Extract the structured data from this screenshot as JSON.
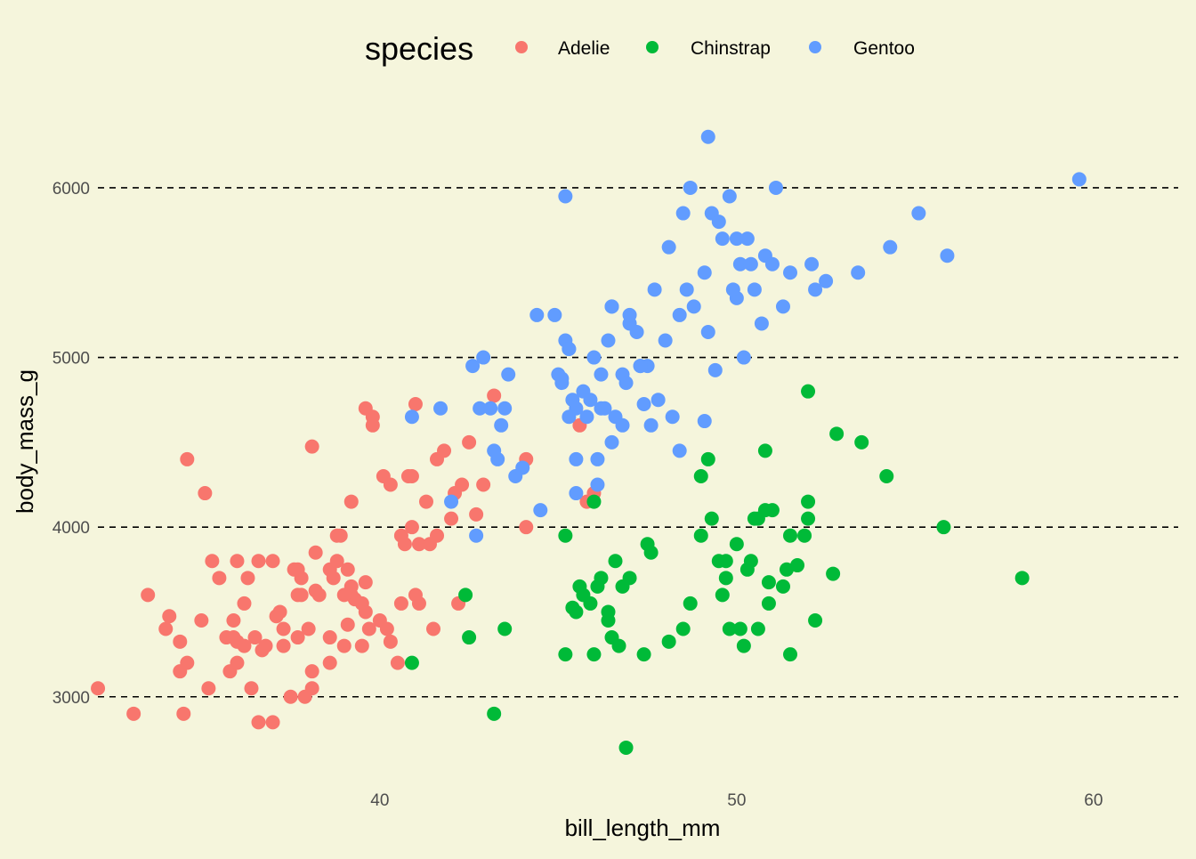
{
  "chart_data": {
    "type": "scatter",
    "xlabel": "bill_length_mm",
    "ylabel": "body_mass_g",
    "xlim": [
      31.5,
      60.5
    ],
    "ylim": [
      2600,
      6400
    ],
    "xticks": [
      40,
      50,
      60
    ],
    "yticks": [
      3000,
      4000,
      5000,
      6000
    ],
    "grid": "horizontal dashed lines at y ticks",
    "legend": {
      "title": "species",
      "position": "top",
      "entries": [
        "Adelie",
        "Chinstrap",
        "Gentoo"
      ]
    },
    "series": [
      {
        "name": "Adelie",
        "color": "#F8766D",
        "points": [
          [
            32.1,
            3050
          ],
          [
            33.1,
            2900
          ],
          [
            33.5,
            3600
          ],
          [
            34.0,
            3400
          ],
          [
            34.1,
            3475
          ],
          [
            34.4,
            3325
          ],
          [
            34.5,
            2900
          ],
          [
            34.6,
            4400
          ],
          [
            34.6,
            3200
          ],
          [
            35.0,
            3450
          ],
          [
            35.1,
            4200
          ],
          [
            35.2,
            3050
          ],
          [
            35.3,
            3800
          ],
          [
            35.5,
            3700
          ],
          [
            35.7,
            3350
          ],
          [
            35.8,
            3150
          ],
          [
            35.9,
            3450
          ],
          [
            36.0,
            3800
          ],
          [
            36.0,
            3200
          ],
          [
            36.0,
            3325
          ],
          [
            36.2,
            3550
          ],
          [
            36.3,
            3700
          ],
          [
            36.4,
            3050
          ],
          [
            36.5,
            3350
          ],
          [
            36.6,
            3800
          ],
          [
            36.7,
            3275
          ],
          [
            36.8,
            3300
          ],
          [
            37.0,
            2850
          ],
          [
            37.0,
            3800
          ],
          [
            37.1,
            3475
          ],
          [
            37.2,
            3500
          ],
          [
            37.3,
            3400
          ],
          [
            37.3,
            3300
          ],
          [
            37.5,
            3000
          ],
          [
            37.6,
            3750
          ],
          [
            37.7,
            3600
          ],
          [
            37.7,
            3350
          ],
          [
            37.8,
            3700
          ],
          [
            37.9,
            3000
          ],
          [
            38.1,
            4475
          ],
          [
            38.1,
            3150
          ],
          [
            38.2,
            3850
          ],
          [
            38.2,
            3625
          ],
          [
            38.3,
            3600
          ],
          [
            38.6,
            3750
          ],
          [
            38.6,
            3350
          ],
          [
            38.6,
            3200
          ],
          [
            38.7,
            3700
          ],
          [
            38.8,
            3800
          ],
          [
            38.8,
            3950
          ],
          [
            38.9,
            3950
          ],
          [
            39.0,
            3300
          ],
          [
            39.1,
            3750
          ],
          [
            39.1,
            3425
          ],
          [
            39.2,
            3650
          ],
          [
            39.2,
            3600
          ],
          [
            39.3,
            3575
          ],
          [
            39.5,
            3550
          ],
          [
            39.5,
            3300
          ],
          [
            39.6,
            3500
          ],
          [
            39.6,
            3675
          ],
          [
            39.7,
            3400
          ],
          [
            39.8,
            4650
          ],
          [
            40.0,
            3450
          ],
          [
            40.1,
            4300
          ],
          [
            40.2,
            3400
          ],
          [
            40.3,
            3325
          ],
          [
            40.5,
            3200
          ],
          [
            40.6,
            3550
          ],
          [
            40.6,
            3950
          ],
          [
            40.7,
            3900
          ],
          [
            40.8,
            4300
          ],
          [
            40.9,
            4000
          ],
          [
            41.0,
            3600
          ],
          [
            41.1,
            3900
          ],
          [
            41.1,
            3550
          ],
          [
            41.3,
            4150
          ],
          [
            41.4,
            3900
          ],
          [
            41.5,
            3400
          ],
          [
            41.6,
            3950
          ],
          [
            41.8,
            4450
          ],
          [
            42.0,
            4050
          ],
          [
            42.1,
            4200
          ],
          [
            42.2,
            3550
          ],
          [
            42.3,
            4250
          ],
          [
            42.5,
            4500
          ],
          [
            42.7,
            4075
          ],
          [
            42.9,
            4250
          ],
          [
            43.2,
            4775
          ],
          [
            44.1,
            4000
          ],
          [
            44.1,
            4400
          ],
          [
            45.6,
            4600
          ],
          [
            45.8,
            4150
          ],
          [
            46.0,
            4200
          ],
          [
            38.1,
            3050
          ],
          [
            36.6,
            2850
          ],
          [
            34.4,
            3150
          ],
          [
            37.8,
            3600
          ],
          [
            39.6,
            4700
          ],
          [
            39.2,
            4150
          ],
          [
            40.3,
            4250
          ],
          [
            39.8,
            4600
          ],
          [
            41.0,
            4725
          ],
          [
            40.9,
            4300
          ],
          [
            41.6,
            4400
          ],
          [
            39.0,
            3600
          ],
          [
            35.9,
            3350
          ],
          [
            36.2,
            3300
          ],
          [
            38.0,
            3400
          ],
          [
            37.7,
            3750
          ]
        ]
      },
      {
        "name": "Chinstrap",
        "color": "#00BA38",
        "points": [
          [
            40.9,
            3200
          ],
          [
            42.4,
            3600
          ],
          [
            42.5,
            3350
          ],
          [
            43.2,
            2900
          ],
          [
            43.5,
            3400
          ],
          [
            45.2,
            3250
          ],
          [
            45.2,
            3950
          ],
          [
            45.4,
            3525
          ],
          [
            45.5,
            3500
          ],
          [
            45.6,
            3650
          ],
          [
            45.7,
            3600
          ],
          [
            45.9,
            3550
          ],
          [
            46.0,
            3250
          ],
          [
            46.1,
            3650
          ],
          [
            46.2,
            3700
          ],
          [
            46.4,
            3450
          ],
          [
            46.4,
            3500
          ],
          [
            46.6,
            3800
          ],
          [
            46.7,
            3300
          ],
          [
            46.8,
            3650
          ],
          [
            46.9,
            2700
          ],
          [
            47.0,
            3700
          ],
          [
            47.5,
            3900
          ],
          [
            47.6,
            3850
          ],
          [
            48.1,
            3325
          ],
          [
            48.5,
            3400
          ],
          [
            49.0,
            4300
          ],
          [
            49.2,
            4400
          ],
          [
            49.3,
            4050
          ],
          [
            49.5,
            3800
          ],
          [
            49.6,
            3600
          ],
          [
            49.7,
            3700
          ],
          [
            50.0,
            3900
          ],
          [
            50.1,
            3400
          ],
          [
            50.2,
            3300
          ],
          [
            50.3,
            3750
          ],
          [
            50.4,
            3800
          ],
          [
            50.5,
            4050
          ],
          [
            50.6,
            3400
          ],
          [
            50.8,
            4450
          ],
          [
            50.9,
            3675
          ],
          [
            51.0,
            4100
          ],
          [
            51.3,
            3650
          ],
          [
            51.4,
            3750
          ],
          [
            51.5,
            3950
          ],
          [
            51.7,
            3775
          ],
          [
            51.9,
            3950
          ],
          [
            52.0,
            4150
          ],
          [
            52.0,
            4800
          ],
          [
            52.2,
            3450
          ],
          [
            52.7,
            3725
          ],
          [
            52.8,
            4550
          ],
          [
            53.5,
            4500
          ],
          [
            54.2,
            4300
          ],
          [
            55.8,
            4000
          ],
          [
            58.0,
            3700
          ],
          [
            49.7,
            3800
          ],
          [
            50.8,
            4100
          ],
          [
            52.0,
            4050
          ],
          [
            51.5,
            3250
          ],
          [
            50.9,
            3550
          ],
          [
            49.0,
            3950
          ],
          [
            49.8,
            3400
          ],
          [
            50.6,
            4050
          ],
          [
            46.0,
            4150
          ],
          [
            46.5,
            3350
          ],
          [
            47.4,
            3250
          ],
          [
            48.7,
            3550
          ]
        ]
      },
      {
        "name": "Gentoo",
        "color": "#619CFF",
        "points": [
          [
            40.9,
            4650
          ],
          [
            41.7,
            4700
          ],
          [
            42.0,
            4150
          ],
          [
            42.7,
            3950
          ],
          [
            42.8,
            4700
          ],
          [
            42.9,
            5000
          ],
          [
            42.6,
            4950
          ],
          [
            43.2,
            4450
          ],
          [
            43.3,
            4400
          ],
          [
            43.4,
            4600
          ],
          [
            43.5,
            4700
          ],
          [
            43.6,
            4900
          ],
          [
            43.8,
            4300
          ],
          [
            44.0,
            4350
          ],
          [
            44.5,
            4100
          ],
          [
            44.9,
            5250
          ],
          [
            45.1,
            4850
          ],
          [
            45.1,
            4875
          ],
          [
            45.2,
            5100
          ],
          [
            45.3,
            5050
          ],
          [
            45.4,
            4750
          ],
          [
            45.5,
            4400
          ],
          [
            45.5,
            4700
          ],
          [
            45.7,
            4800
          ],
          [
            45.8,
            4650
          ],
          [
            45.9,
            4750
          ],
          [
            46.0,
            5000
          ],
          [
            46.1,
            4400
          ],
          [
            46.1,
            4250
          ],
          [
            46.2,
            4700
          ],
          [
            46.4,
            5100
          ],
          [
            46.5,
            4500
          ],
          [
            46.5,
            5300
          ],
          [
            46.6,
            4650
          ],
          [
            46.8,
            4900
          ],
          [
            46.9,
            4850
          ],
          [
            47.0,
            5200
          ],
          [
            47.2,
            5150
          ],
          [
            47.3,
            4950
          ],
          [
            47.4,
            4725
          ],
          [
            47.5,
            4950
          ],
          [
            47.7,
            5400
          ],
          [
            47.8,
            4750
          ],
          [
            48.1,
            5650
          ],
          [
            48.2,
            4650
          ],
          [
            48.4,
            5250
          ],
          [
            48.5,
            5850
          ],
          [
            48.6,
            5400
          ],
          [
            48.7,
            6000
          ],
          [
            48.8,
            5300
          ],
          [
            49.1,
            4625
          ],
          [
            49.2,
            6300
          ],
          [
            49.3,
            5850
          ],
          [
            49.4,
            4925
          ],
          [
            49.5,
            5800
          ],
          [
            49.6,
            5700
          ],
          [
            49.8,
            5950
          ],
          [
            50.0,
            5700
          ],
          [
            50.1,
            5550
          ],
          [
            50.2,
            5000
          ],
          [
            50.4,
            5550
          ],
          [
            50.5,
            5400
          ],
          [
            50.7,
            5200
          ],
          [
            50.8,
            5600
          ],
          [
            51.1,
            6000
          ],
          [
            51.3,
            5300
          ],
          [
            51.5,
            5500
          ],
          [
            52.1,
            5550
          ],
          [
            52.2,
            5400
          ],
          [
            52.5,
            5450
          ],
          [
            53.4,
            5500
          ],
          [
            54.3,
            5650
          ],
          [
            55.1,
            5850
          ],
          [
            55.9,
            5600
          ],
          [
            59.6,
            6050
          ],
          [
            45.2,
            5950
          ],
          [
            46.5,
            5300
          ],
          [
            47.0,
            5250
          ],
          [
            47.6,
            4600
          ],
          [
            48.4,
            4450
          ],
          [
            49.2,
            5150
          ],
          [
            50.3,
            5700
          ],
          [
            50.0,
            5350
          ],
          [
            51.0,
            5550
          ],
          [
            49.9,
            5400
          ],
          [
            48.0,
            5100
          ],
          [
            49.1,
            5500
          ],
          [
            46.2,
            4900
          ],
          [
            45.0,
            4900
          ],
          [
            45.5,
            4200
          ],
          [
            46.3,
            4700
          ],
          [
            47.3,
            4950
          ],
          [
            44.4,
            5250
          ],
          [
            45.3,
            4650
          ],
          [
            43.1,
            4700
          ],
          [
            46.8,
            4600
          ],
          [
            45.3,
            5050
          ]
        ]
      }
    ]
  }
}
